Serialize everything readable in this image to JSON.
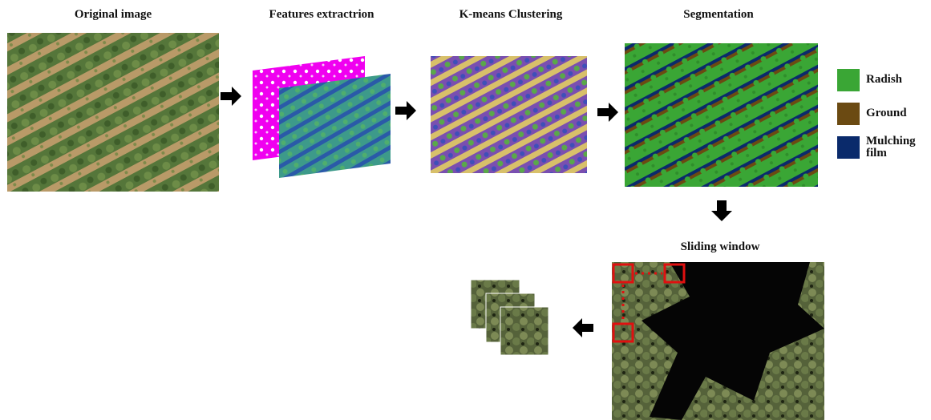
{
  "steps": [
    {
      "title": "Original image"
    },
    {
      "title": "Features extractrion"
    },
    {
      "title": "K-means Clustering"
    },
    {
      "title": "Segmentation"
    }
  ],
  "legend": [
    {
      "label": "Radish"
    },
    {
      "label": "Ground"
    },
    {
      "label": "Mulching film"
    }
  ],
  "sliding": {
    "title": "Sliding window"
  }
}
